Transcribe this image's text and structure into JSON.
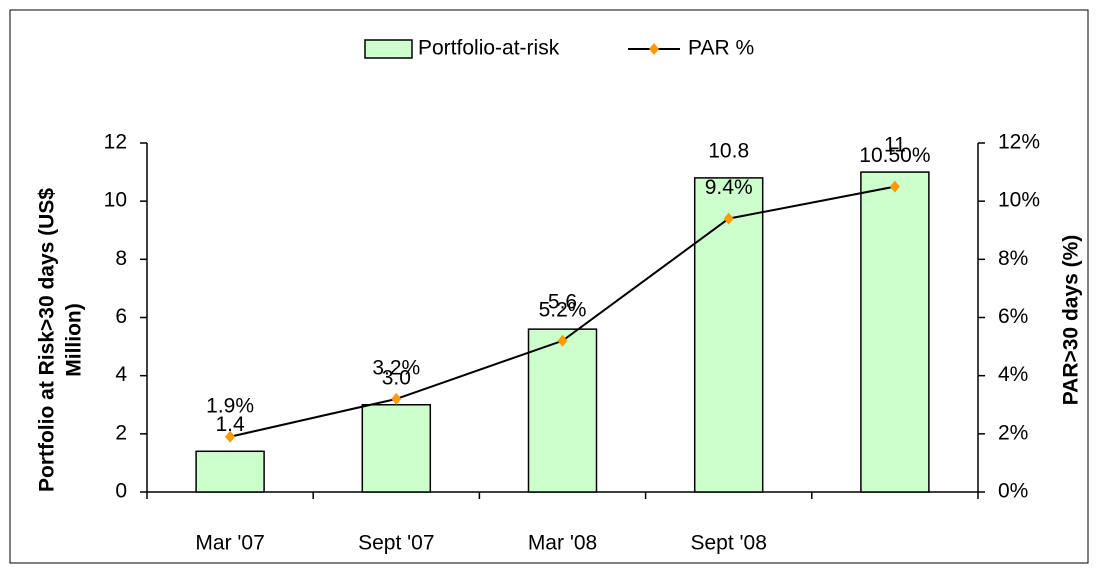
{
  "chart_data": {
    "type": "bar",
    "categories": [
      "Mar '07",
      "Sept '07",
      "Mar '08",
      "Sept '08",
      null
    ],
    "ylabel": [
      "Portfolio at Risk>30 days (US$",
      "Million)"
    ],
    "y2label": "PAR>30 days (%)",
    "ylim": [
      0,
      12
    ],
    "yticks": [
      0,
      2,
      4,
      6,
      8,
      10,
      12
    ],
    "y2lim": [
      0,
      12
    ],
    "y2ticks": [
      {
        "value": 0,
        "label": "0%"
      },
      {
        "value": 2,
        "label": "2%"
      },
      {
        "value": 4,
        "label": "4%"
      },
      {
        "value": 6,
        "label": "6%"
      },
      {
        "value": 8,
        "label": "8%"
      },
      {
        "value": 10,
        "label": "10%"
      },
      {
        "value": 12,
        "label": "12%"
      }
    ],
    "legend": "top",
    "series": [
      {
        "name": "Portfolio-at-risk",
        "type": "bar",
        "color": "#ccffcc",
        "values": [
          1.4,
          3.0,
          5.6,
          10.8,
          11
        ],
        "value_labels": [
          "1.4",
          "3.0",
          "5.6",
          "10.8",
          "11"
        ]
      },
      {
        "name": "PAR %",
        "type": "line",
        "axis": "y2",
        "color": "#ff9900",
        "values": [
          1.9,
          3.2,
          5.2,
          9.4,
          10.5
        ],
        "value_labels": [
          "1.9%",
          "3.2%",
          "5.2%",
          "9.4%",
          "10.50%"
        ]
      }
    ]
  }
}
